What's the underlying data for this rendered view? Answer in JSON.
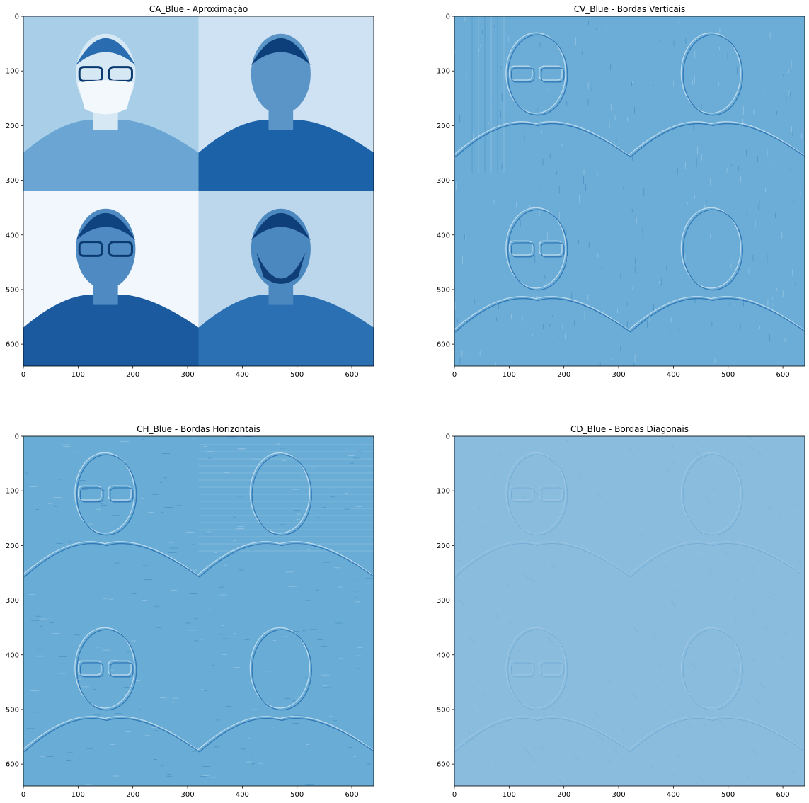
{
  "figure": {
    "background": "#ffffff"
  },
  "chart_data": [
    {
      "type": "heatmap",
      "title": "CA_Blue - Aproximação",
      "colormap": "Blues",
      "xlim": [
        0,
        640
      ],
      "ylim": [
        640,
        0
      ],
      "xticks": [
        0,
        100,
        200,
        300,
        400,
        500,
        600
      ],
      "yticks": [
        0,
        100,
        200,
        300,
        400,
        500,
        600
      ],
      "grid": false,
      "content": "approximation (low-pass) coefficients: 2x2 grid of four webcam portraits",
      "tone": "full-contrast",
      "base_color": "#9ec8e6"
    },
    {
      "type": "heatmap",
      "title": "CV_Blue - Bordas Verticais",
      "colormap": "Blues",
      "xlim": [
        0,
        640
      ],
      "ylim": [
        640,
        0
      ],
      "xticks": [
        0,
        100,
        200,
        300,
        400,
        500,
        600
      ],
      "yticks": [
        0,
        100,
        200,
        300,
        400,
        500,
        600
      ],
      "grid": false,
      "content": "vertical detail coefficients (embossed vertical edges)",
      "tone": "embossed",
      "base_color": "#6badd6"
    },
    {
      "type": "heatmap",
      "title": "CH_Blue - Bordas Horizontais",
      "colormap": "Blues",
      "xlim": [
        0,
        640
      ],
      "ylim": [
        640,
        0
      ],
      "xticks": [
        0,
        100,
        200,
        300,
        400,
        500,
        600
      ],
      "yticks": [
        0,
        100,
        200,
        300,
        400,
        500,
        600
      ],
      "grid": false,
      "content": "horizontal detail coefficients (embossed horizontal edges)",
      "tone": "embossed",
      "base_color": "#69acd5"
    },
    {
      "type": "heatmap",
      "title": "CD_Blue - Bordas Diagonais",
      "colormap": "Blues",
      "xlim": [
        0,
        640
      ],
      "ylim": [
        640,
        0
      ],
      "xticks": [
        0,
        100,
        200,
        300,
        400,
        500,
        600
      ],
      "yticks": [
        0,
        100,
        200,
        300,
        400,
        500,
        600
      ],
      "grid": false,
      "content": "diagonal detail coefficients (faint diagonal edges)",
      "tone": "faint",
      "base_color": "#89bcdd"
    }
  ]
}
